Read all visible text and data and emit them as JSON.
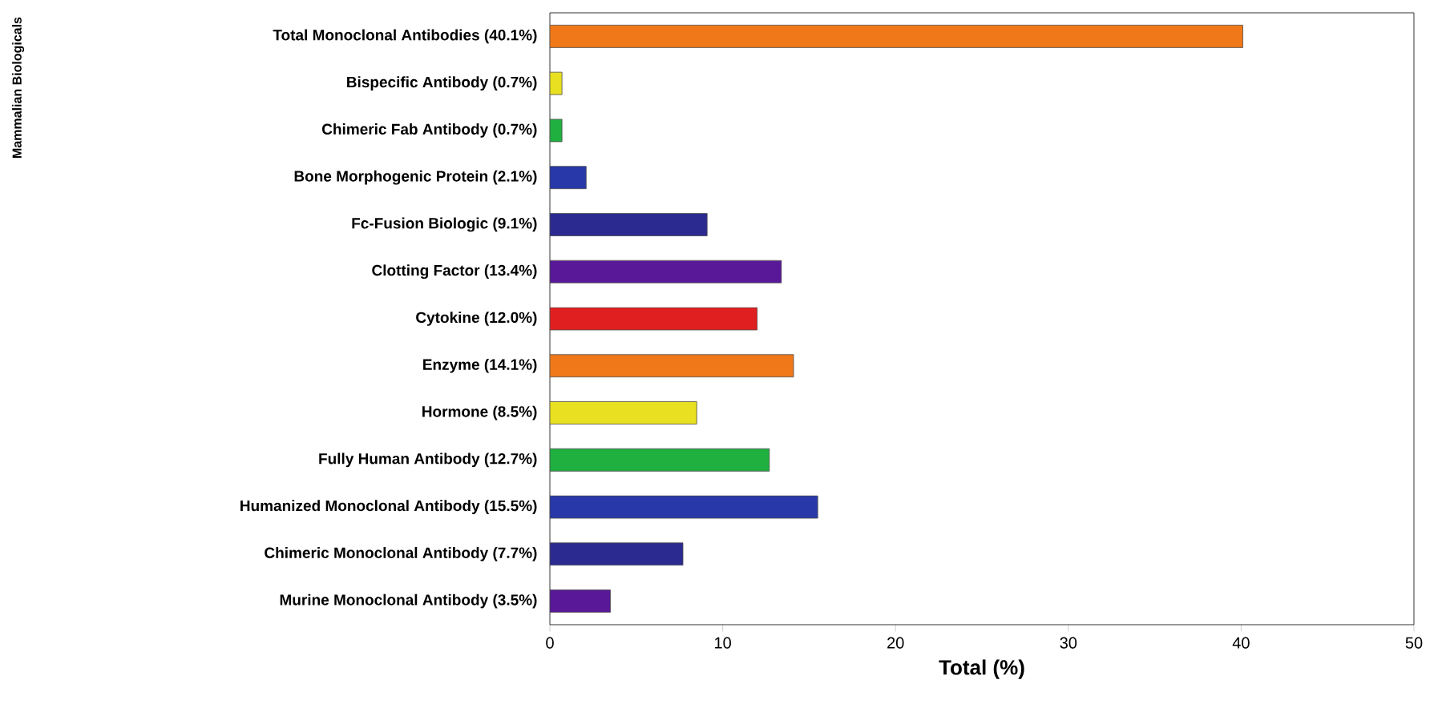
{
  "chart_data": {
    "type": "bar",
    "orientation": "horizontal",
    "categories": [
      "Total Monoclonal Antibodies (40.1%)",
      "Bispecific Antibody (0.7%)",
      "Chimeric Fab Antibody (0.7%)",
      "Bone Morphogenic Protein (2.1%)",
      "Fc-Fusion Biologic (9.1%)",
      "Clotting Factor (13.4%)",
      "Cytokine (12.0%)",
      "Enzyme (14.1%)",
      "Hormone (8.5%)",
      "Fully Human Antibody (12.7%)",
      "Humanized Monoclonal Antibody (15.5%)",
      "Chimeric Monoclonal Antibody (7.7%)",
      "Murine Monoclonal Antibody (3.5%)"
    ],
    "values": [
      40.1,
      0.7,
      0.7,
      2.1,
      9.1,
      13.4,
      12.0,
      14.1,
      8.5,
      12.7,
      15.5,
      7.7,
      3.5
    ],
    "colors": [
      "#f07818",
      "#e8e020",
      "#20b040",
      "#2838a8",
      "#2a2a90",
      "#581898",
      "#e02020",
      "#f07818",
      "#e8e020",
      "#20b040",
      "#2838a8",
      "#2a2a90",
      "#581898"
    ],
    "xlabel": "Total (%)",
    "annotations": [
      "Mammalian Biologicals"
    ],
    "xlim": [
      0,
      50
    ],
    "xticks": [
      0,
      10,
      20,
      30,
      40,
      50
    ],
    "grid": false
  }
}
